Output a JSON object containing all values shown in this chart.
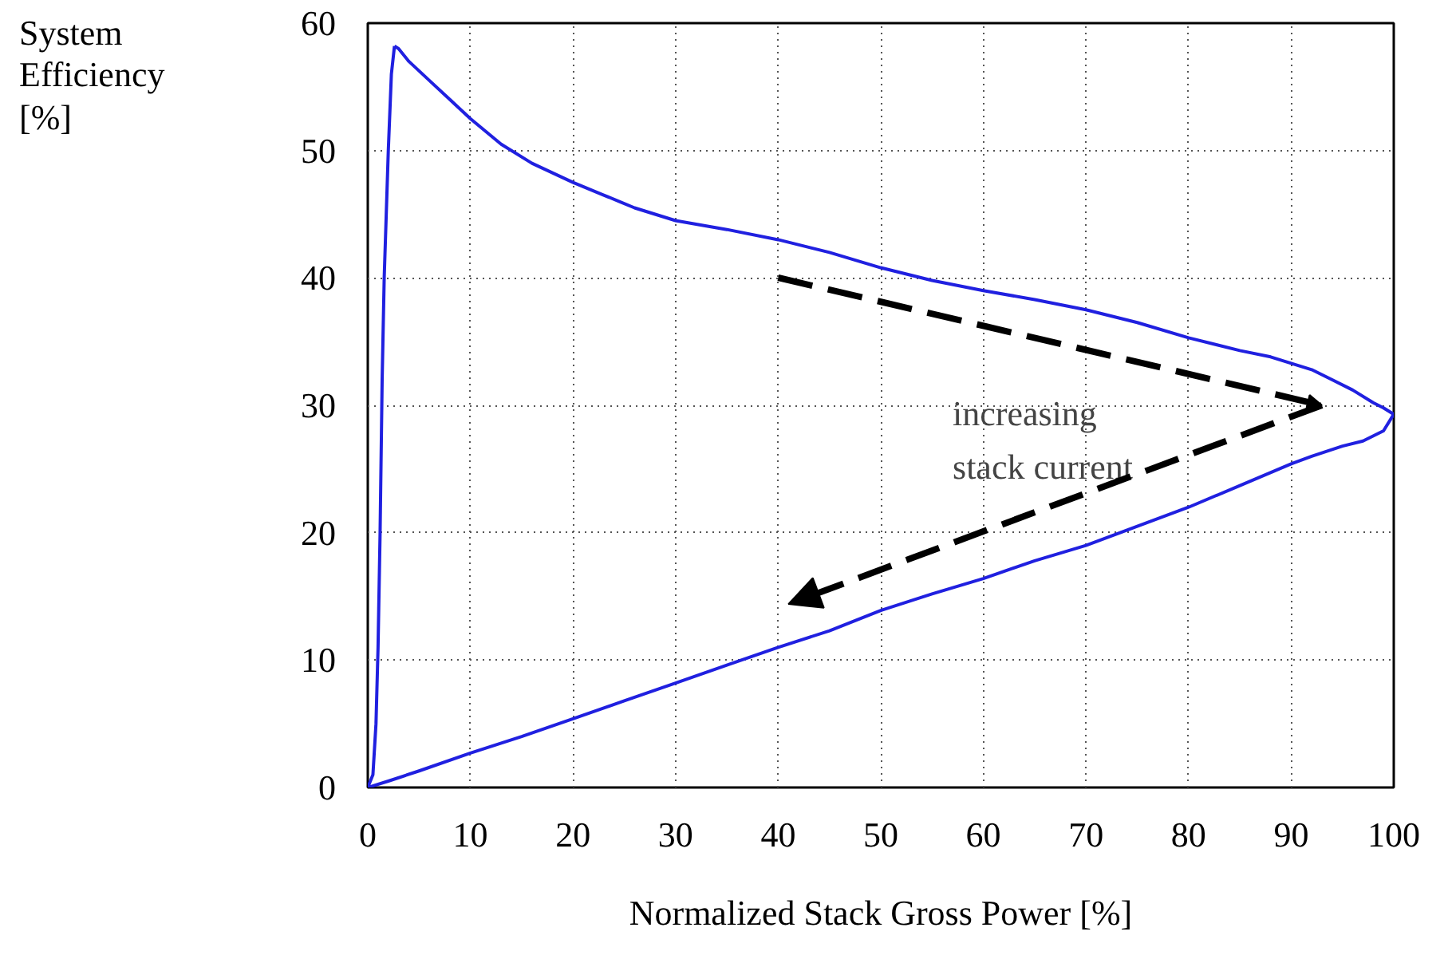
{
  "chart_data": {
    "type": "line",
    "xlabel": "Normalized Stack Gross Power [%]",
    "ylabel": "System Efficiency [%]",
    "series": [
      {
        "color": "#2020e0",
        "x": [
          0,
          0.5,
          0.8,
          1.0,
          1.2,
          1.4,
          1.6,
          1.8,
          2.0,
          2.3,
          2.6
        ],
        "values": [
          0,
          1,
          5,
          11,
          20,
          32,
          40,
          45,
          50,
          56,
          58.2
        ]
      },
      {
        "color": "#2020e0",
        "x": [
          2.6,
          3,
          4,
          6,
          8,
          10,
          13,
          16,
          20,
          23,
          26,
          30,
          35,
          40,
          45,
          50,
          55,
          60,
          65,
          70,
          75,
          80,
          85,
          88,
          90,
          92,
          94,
          96,
          98,
          99,
          100
        ],
        "values": [
          58.2,
          58,
          57,
          55.5,
          54,
          52.5,
          50.5,
          49,
          47.5,
          46.5,
          45.5,
          44.5,
          43.8,
          43,
          42,
          40.8,
          39.8,
          39,
          38.3,
          37.5,
          36.5,
          35.3,
          34.3,
          33.8,
          33.3,
          32.8,
          32,
          31.2,
          30.2,
          29.8,
          29.3
        ]
      },
      {
        "color": "#2020e0",
        "x": [
          0,
          2,
          5,
          10,
          15,
          20,
          25,
          30,
          35,
          40,
          45,
          50,
          55,
          60,
          65,
          70,
          75,
          80,
          85,
          90,
          92,
          95,
          97,
          99,
          100
        ],
        "values": [
          0,
          0.5,
          1.3,
          2.7,
          4,
          5.4,
          6.8,
          8.2,
          9.6,
          11,
          12.3,
          13.9,
          15.2,
          16.4,
          17.8,
          19,
          20.5,
          22,
          23.7,
          25.4,
          26,
          26.8,
          27.2,
          28,
          29.3
        ]
      }
    ],
    "xlim": [
      0,
      100
    ],
    "ylim": [
      0,
      60
    ],
    "xticks": [
      0,
      10,
      20,
      30,
      40,
      50,
      60,
      70,
      80,
      90,
      100
    ],
    "yticks": [
      0,
      10,
      20,
      30,
      40,
      50,
      60
    ],
    "grid": true,
    "line_style": "solid",
    "annotations": [
      "increasing stack current"
    ]
  }
}
